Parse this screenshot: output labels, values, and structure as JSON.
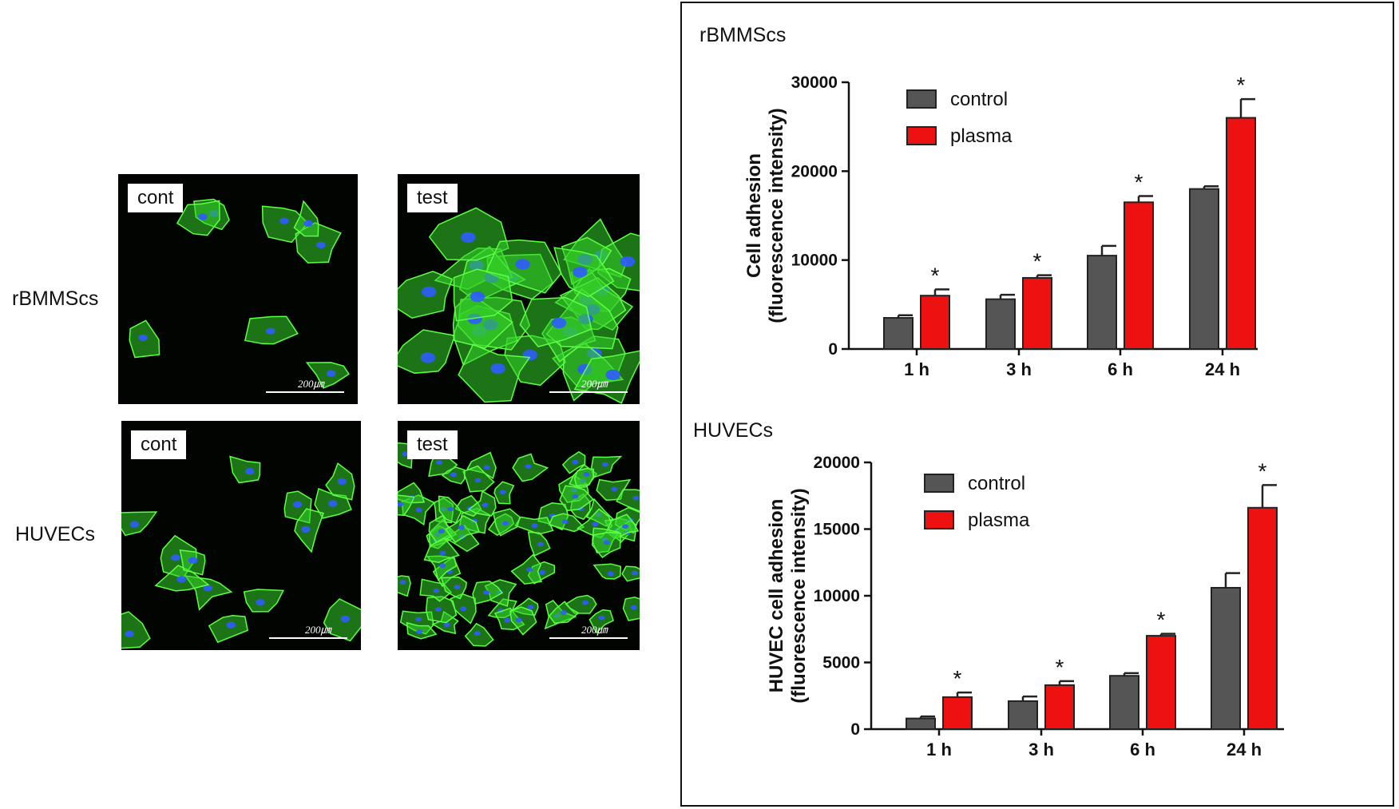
{
  "micrographs": {
    "rows": [
      {
        "label": "rBMMScs",
        "left_tag": "cont",
        "right_tag": "test",
        "scale": "200㎛"
      },
      {
        "label": "HUVECs",
        "left_tag": "cont",
        "right_tag": "test",
        "scale": "200㎛"
      }
    ],
    "colors": {
      "stain": "#35d12a",
      "nuclei": "#2f5cff",
      "background": "#020402"
    }
  },
  "chart_titles": {
    "top": "rBMMScs",
    "bottom": "HUVECs"
  },
  "chart_data": [
    {
      "type": "bar",
      "categories": [
        "1 h",
        "3 h",
        "6 h",
        "24 h"
      ],
      "series": [
        {
          "name": "control",
          "values": [
            3500,
            5600,
            10500,
            18000
          ],
          "errors": [
            300,
            500,
            1100,
            300
          ],
          "color": "#555555"
        },
        {
          "name": "plasma",
          "values": [
            6000,
            8000,
            16500,
            26000
          ],
          "errors": [
            700,
            300,
            700,
            2100
          ],
          "color": "#ee1111"
        }
      ],
      "significance": [
        "*",
        "*",
        "*",
        "*"
      ],
      "ylabel": [
        "Cell adhesion",
        "(fluorescence intensity)"
      ],
      "ylim": [
        0,
        30000
      ],
      "yticks": [
        "0",
        "10000",
        "20000",
        "30000"
      ],
      "legend": "top-left"
    },
    {
      "type": "bar",
      "categories": [
        "1 h",
        "3 h",
        "6 h",
        "24 h"
      ],
      "series": [
        {
          "name": "control",
          "values": [
            800,
            2100,
            4000,
            10600
          ],
          "errors": [
            150,
            350,
            200,
            1100
          ],
          "color": "#555555"
        },
        {
          "name": "plasma",
          "values": [
            2400,
            3300,
            7000,
            16600
          ],
          "errors": [
            350,
            300,
            150,
            1700
          ],
          "color": "#ee1111"
        }
      ],
      "significance": [
        "*",
        "*",
        "*",
        "*"
      ],
      "ylabel": [
        "HUVEC cell adhesion",
        "(fluorescence intensity)"
      ],
      "ylim": [
        0,
        20000
      ],
      "yticks": [
        "0",
        "5000",
        "10000",
        "15000",
        "20000"
      ],
      "legend": "top-left"
    }
  ]
}
